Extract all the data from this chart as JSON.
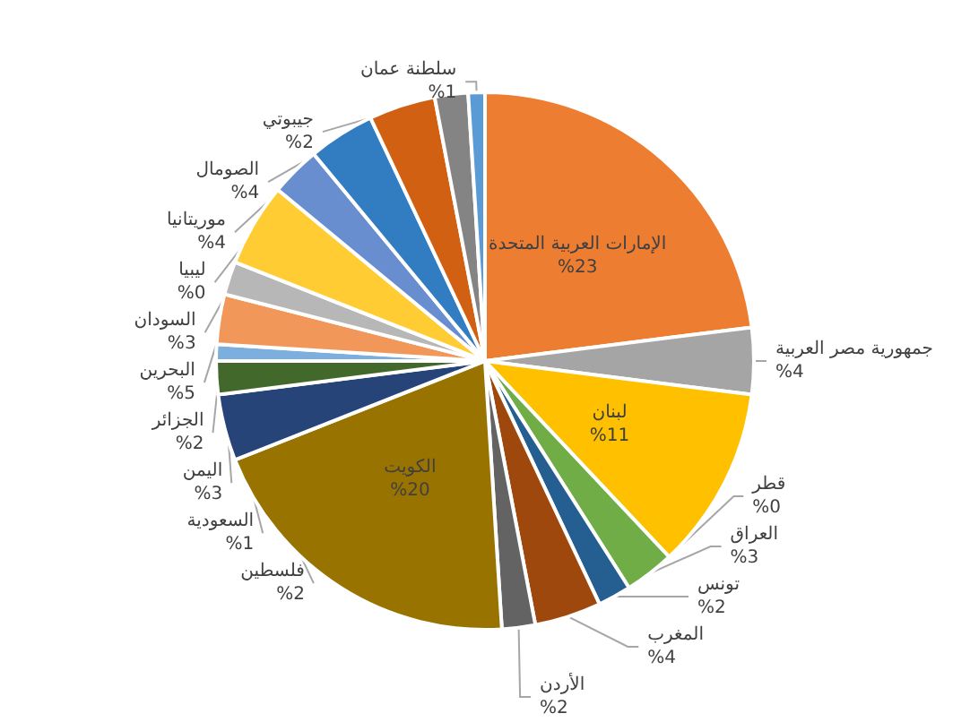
{
  "chart_data": {
    "type": "pie",
    "categories": [
      "الإمارات العربية المتحدة",
      "جمهورية مصر العربية",
      "لبنان",
      "قطر",
      "العراق",
      "تونس",
      "المغرب",
      "الأردن",
      "الكويت",
      null,
      "فلسطين",
      "السعودية",
      "اليمن",
      "الجزائر",
      "البحرين",
      "السودان",
      "ليبيا",
      "موريتانيا",
      "الصومال",
      "جيبوتي",
      "سلطنة عمان"
    ],
    "values": [
      23,
      4,
      11,
      0,
      3,
      2,
      4,
      2,
      20,
      4,
      2,
      1,
      3,
      2,
      5,
      3,
      0,
      4,
      4,
      2,
      1
    ],
    "value_labels": [
      "%23",
      "%4",
      "%11",
      "%0",
      "%3",
      "%2",
      "%4",
      "%2",
      "%20",
      null,
      "%2",
      "%1",
      "%3",
      "%2",
      "%5",
      "%3",
      "%0",
      "%4",
      "%4",
      "%2",
      "%1"
    ],
    "colors": [
      "#ed7d31",
      "#a5a5a5",
      "#ffc000",
      "#4472c4",
      "#70ad47",
      "#255e91",
      "#9e480e",
      "#636363",
      "#997300",
      "#264478",
      "#43682b",
      "#7cafdd",
      "#f1975a",
      "#b7b7b7",
      "#ffcd33",
      "#698ed0",
      "#8cc168",
      "#327dc2",
      "#d26012",
      "#848484",
      "#5b9bd5"
    ]
  }
}
